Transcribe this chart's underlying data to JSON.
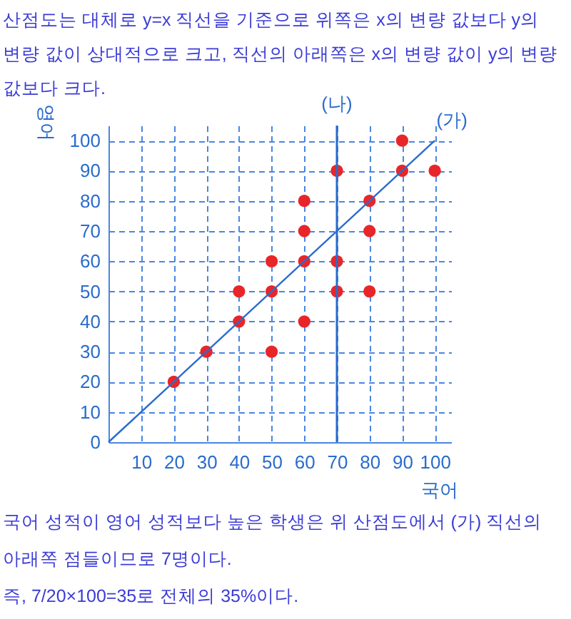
{
  "chart_data": {
    "type": "scatter",
    "title": "산점도는 대체로 y=x 직선을 기준으로 위쪽은 x의 변량 값보다 y의 변량 값이 상대적으로 크고, 직선의 아래쪽은 x의 변량 값이 y의 변량 값보다 크다.",
    "xlabel": "국어",
    "ylabel": "영어",
    "series": [
      {
        "type": "scatter",
        "marker": "circle",
        "color": "#e8262a",
        "x": [
          20,
          30,
          40,
          40,
          50,
          50,
          50,
          60,
          60,
          60,
          60,
          70,
          70,
          70,
          80,
          80,
          80,
          90,
          90,
          100
        ],
        "values": [
          20,
          30,
          40,
          50,
          30,
          50,
          60,
          40,
          60,
          70,
          80,
          50,
          60,
          90,
          50,
          70,
          80,
          90,
          100,
          90
        ]
      },
      {
        "type": "line",
        "name": "(가)",
        "color": "#2a6ccc",
        "x": [
          0,
          100
        ],
        "values": [
          0,
          100
        ]
      }
    ],
    "ref_lines": [
      {
        "axis": "x",
        "value": 70,
        "label": "(나)",
        "color": "#2a6ccc"
      }
    ],
    "xlim": [
      0,
      105
    ],
    "ylim": [
      0,
      105
    ],
    "xticks": [
      {
        "value": 0,
        "label": null
      },
      10,
      20,
      30,
      40,
      50,
      60,
      70,
      80,
      90,
      100
    ],
    "yticks": [
      0,
      10,
      20,
      30,
      40,
      50,
      60,
      70,
      80,
      90,
      100
    ],
    "grid": true,
    "legend": false,
    "annotations": [
      "국어 성적이 영어 성적보다 높은 학생은 위 산점도에서 (가) 직선의 아래쪽 점들이므로 7명이다.",
      "즉, 7/20×100=35로 전체의 35%이다."
    ]
  }
}
